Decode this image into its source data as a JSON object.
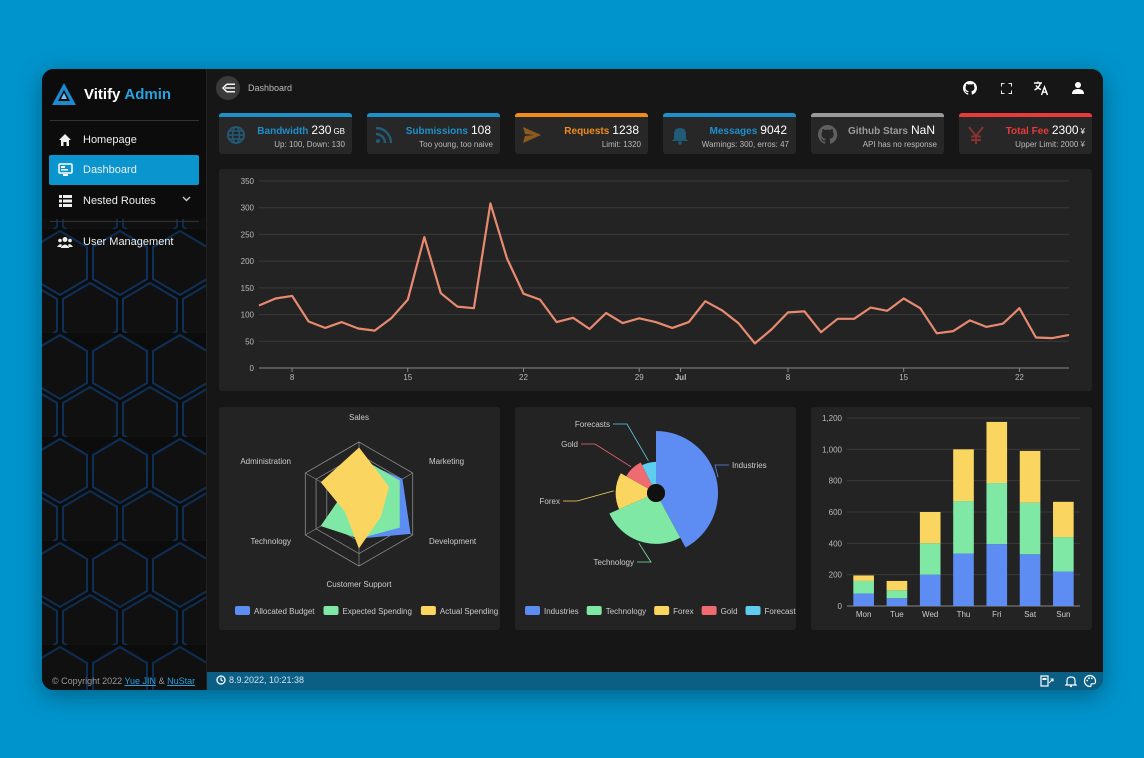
{
  "brand": {
    "name": "Vitify",
    "accent": "Admin"
  },
  "sidebar": {
    "items": [
      {
        "label": "Homepage",
        "icon": "home-icon"
      },
      {
        "label": "Dashboard",
        "icon": "monitor-icon",
        "active": true
      },
      {
        "label": "Nested Routes",
        "icon": "list-icon"
      },
      {
        "label": "User Management",
        "icon": "users-icon"
      }
    ],
    "copyright_prefix": "© Copyright 2022",
    "author1": "Yue JIN",
    "amp": "&",
    "author2": "NuStar"
  },
  "topbar": {
    "breadcrumb": "Dashboard"
  },
  "stats": [
    {
      "label": "Bandwidth",
      "value": "230",
      "unit": "GB",
      "sub": "Up: 100, Down: 130",
      "color": "#1f8fc9",
      "icon": "globe-icon"
    },
    {
      "label": "Submissions",
      "value": "108",
      "unit": "",
      "sub": "Too young, too naive",
      "color": "#1f8fc9",
      "icon": "rss-icon"
    },
    {
      "label": "Requests",
      "value": "1238",
      "unit": "",
      "sub": "Limit: 1320",
      "color": "#f08c1a",
      "icon": "send-icon"
    },
    {
      "label": "Messages",
      "value": "9042",
      "unit": "",
      "sub": "Warnings: 300, erros: 47",
      "color": "#1f8fc9",
      "icon": "bell-icon"
    },
    {
      "label": "Github Stars",
      "value": "NaN",
      "unit": "",
      "sub": "API has no response",
      "color": "#9a9a9a",
      "icon": "github-icon"
    },
    {
      "label": "Total Fee",
      "value": "2300",
      "unit": "¥",
      "sub": "Upper Limit: 2000 ¥",
      "color": "#e83a3a",
      "icon": "yen-icon"
    }
  ],
  "statusbar": {
    "datetime": "8.9.2022, 10:21:38"
  },
  "chart_data": [
    {
      "type": "line",
      "y_ticks": [
        "0",
        "50",
        "100",
        "150",
        "200",
        "250",
        "300",
        "350"
      ],
      "x_ticks": [
        "8",
        "15",
        "22",
        "29",
        "Jul",
        "8",
        "15",
        "22"
      ],
      "ylim": [
        0,
        350
      ],
      "color": "#e88a70",
      "values": [
        117,
        130,
        135,
        87,
        75,
        86,
        74,
        70,
        93,
        128,
        245,
        140,
        115,
        112,
        308,
        205,
        139,
        128,
        86,
        94,
        73,
        103,
        84,
        93,
        86,
        75,
        86,
        125,
        108,
        84,
        46,
        72,
        104,
        106,
        67,
        92,
        92,
        113,
        107,
        130,
        112,
        65,
        69,
        89,
        77,
        83,
        112,
        57,
        56,
        62
      ]
    },
    {
      "type": "radar",
      "indicators": [
        "Sales",
        "Marketing",
        "Development",
        "Customer Support",
        "Technology",
        "Administration"
      ],
      "max": 100,
      "series": [
        {
          "name": "Allocated Budget",
          "color": "#5d8df2",
          "values": [
            70,
            80,
            95,
            55,
            40,
            40
          ]
        },
        {
          "name": "Expected Spending",
          "color": "#7ee8a4",
          "values": [
            75,
            75,
            75,
            55,
            70,
            30
          ]
        },
        {
          "name": "Actual Spending",
          "color": "#fad660",
          "values": [
            90,
            55,
            40,
            70,
            25,
            70
          ]
        }
      ]
    },
    {
      "type": "pie",
      "rose": true,
      "slices": [
        {
          "name": "Industries",
          "value": 40,
          "color": "#5d8df2"
        },
        {
          "name": "Technology",
          "value": 25,
          "color": "#7ee8a4"
        },
        {
          "name": "Forex",
          "value": 14,
          "color": "#fad660"
        },
        {
          "name": "Gold",
          "value": 9,
          "color": "#ee6b72"
        },
        {
          "name": "Forecasts",
          "value": 7,
          "color": "#5fcdee"
        }
      ]
    },
    {
      "type": "bar",
      "stacked": true,
      "categories": [
        "Mon",
        "Tue",
        "Wed",
        "Thu",
        "Fri",
        "Sat",
        "Sun"
      ],
      "y_ticks": [
        "0",
        "200",
        "400",
        "600",
        "800",
        "1,000",
        "1,200"
      ],
      "ylim": [
        0,
        1200
      ],
      "series": [
        {
          "color": "#5d8df2",
          "values": [
            80,
            50,
            200,
            335,
            395,
            330,
            220
          ]
        },
        {
          "color": "#7ee8a4",
          "values": [
            80,
            50,
            200,
            335,
            390,
            330,
            220
          ]
        },
        {
          "color": "#fad660",
          "values": [
            35,
            60,
            200,
            330,
            390,
            330,
            225
          ]
        }
      ]
    }
  ]
}
